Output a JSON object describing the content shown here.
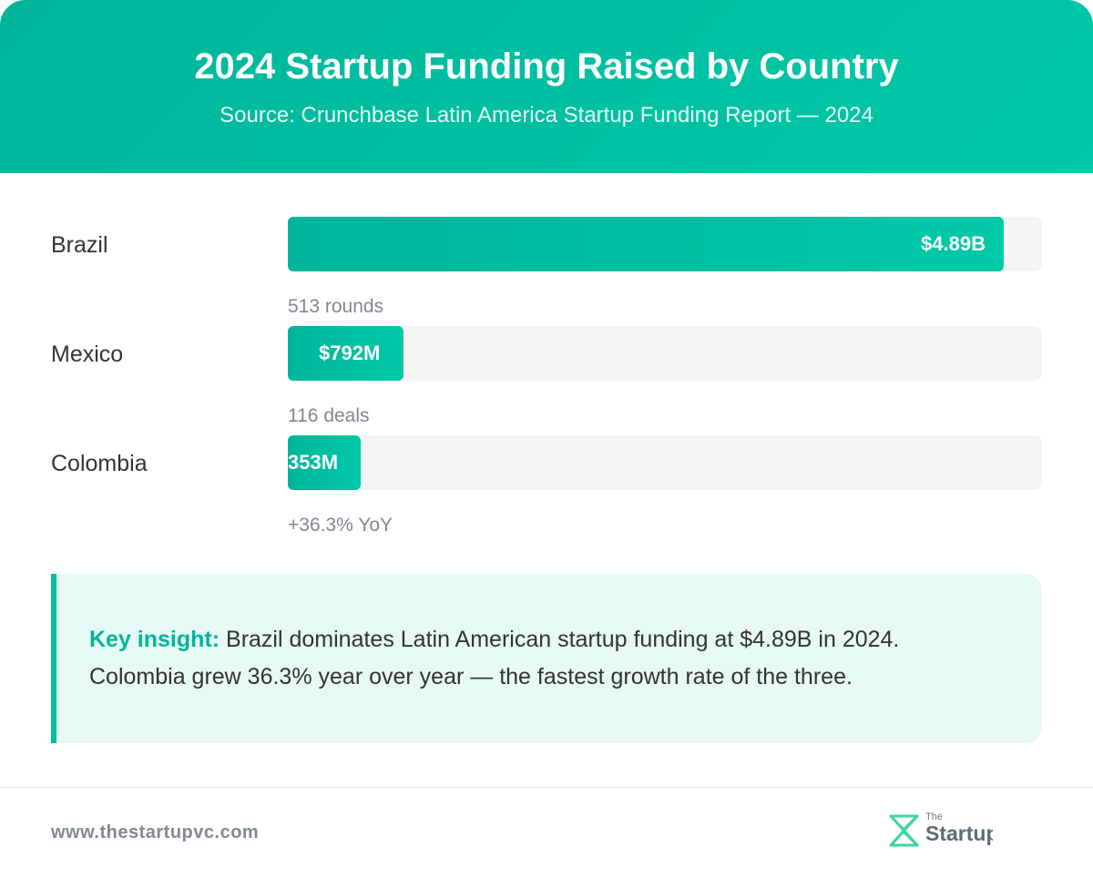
{
  "header": {
    "title": "2024 Startup Funding Raised by Country",
    "subtitle": "Source: Crunchbase Latin America Startup Funding Report — 2024"
  },
  "chart_data": {
    "type": "bar",
    "orientation": "horizontal",
    "categories": [
      "Brazil",
      "Mexico",
      "Colombia"
    ],
    "values": [
      4.89,
      0.792,
      0.353
    ],
    "unit": "USD billions",
    "value_labels": [
      "$4.89B",
      "$792M",
      "353M"
    ],
    "notes": [
      "",
      "513 rounds",
      "116 deals"
    ],
    "footnote": "+36.3% YoY",
    "xlim": [
      0,
      5.15
    ],
    "colors": {
      "bar": "#00c2a0",
      "track": "#f4f4f4"
    }
  },
  "insight": {
    "label": "Key insight:",
    "text": "Brazil dominates Latin American startup funding at $4.89B in 2024. Colombia grew 36.3% year over year — the fastest growth rate of the three."
  },
  "footer": {
    "url": "www.thestartupvc.com",
    "logo_small": "The",
    "logo_word": "Startup"
  }
}
